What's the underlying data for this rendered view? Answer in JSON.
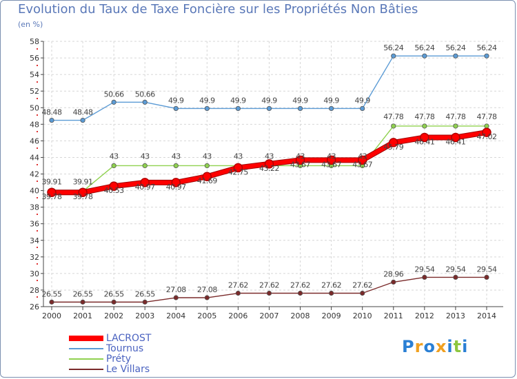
{
  "chart_data": {
    "type": "line",
    "title": "Evolution du Taux de Taxe Foncière sur les Propriétés Non Bâties",
    "ylabel": "(en %)",
    "xlabel": "",
    "x": [
      "2000",
      "2001",
      "2002",
      "2003",
      "2004",
      "2005",
      "2006",
      "2007",
      "2008",
      "2009",
      "2010",
      "2011",
      "2012",
      "2013",
      "2014"
    ],
    "ylim": [
      26,
      58
    ],
    "yticks": [
      26,
      28,
      30,
      32,
      34,
      36,
      38,
      40,
      42,
      44,
      46,
      48,
      50,
      52,
      54,
      56,
      58
    ],
    "grid": true,
    "legend_position": "bottom-left",
    "series": [
      {
        "name": "LACROST",
        "color": "#ff0000",
        "values": [
          39.78,
          39.78,
          40.53,
          40.97,
          40.97,
          41.69,
          42.75,
          43.22,
          43.67,
          43.67,
          43.67,
          45.79,
          46.41,
          46.41,
          47.02
        ],
        "labels": [
          "39.78",
          "39.78",
          "40.53",
          "40.97",
          "40.97",
          "41.69",
          "42.75",
          "43.22",
          "43.67",
          "43.67",
          "43.67",
          "45.79",
          "46.41",
          "46.41",
          "47.02"
        ]
      },
      {
        "name": "Tournus",
        "color": "#5b9bd5",
        "values": [
          48.48,
          48.48,
          50.66,
          50.66,
          49.9,
          49.9,
          49.9,
          49.9,
          49.9,
          49.9,
          49.9,
          56.24,
          56.24,
          56.24,
          56.24
        ],
        "labels": [
          "48.48",
          "48.48",
          "50.66",
          "50.66",
          "49.9",
          "49.9",
          "49.9",
          "49.9",
          "49.9",
          "49.9",
          "49.9",
          "56.24",
          "56.24",
          "56.24",
          "56.24"
        ]
      },
      {
        "name": "Préty",
        "color": "#8fd14f",
        "values": [
          39.91,
          39.91,
          43,
          43,
          43,
          43,
          43,
          43,
          43,
          43,
          43,
          47.78,
          47.78,
          47.78,
          47.78
        ],
        "labels": [
          "39.91",
          "39.91",
          "43",
          "43",
          "43",
          "43",
          "43",
          "43",
          "43",
          "43",
          "43",
          "47.78",
          "47.78",
          "47.78",
          "47.78"
        ]
      },
      {
        "name": "Le Villars",
        "color": "#7a2a2a",
        "values": [
          26.55,
          26.55,
          26.55,
          26.55,
          27.08,
          27.08,
          27.62,
          27.62,
          27.62,
          27.62,
          27.62,
          28.96,
          29.54,
          29.54,
          29.54
        ],
        "labels": [
          "26.55",
          "26.55",
          "26.55",
          "26.55",
          "27.08",
          "27.08",
          "27.62",
          "27.62",
          "27.62",
          "27.62",
          "27.62",
          "28.96",
          "29.54",
          "29.54",
          "29.54"
        ]
      }
    ]
  },
  "logo": {
    "letters": [
      "P",
      "r",
      "o",
      "x",
      "i",
      "t",
      "i"
    ],
    "colors": [
      "#2a7fd4",
      "#f0a020",
      "#2a7fd4",
      "#f0a020",
      "#2a7fd4",
      "#8dc63f",
      "#2a7fd4"
    ]
  }
}
